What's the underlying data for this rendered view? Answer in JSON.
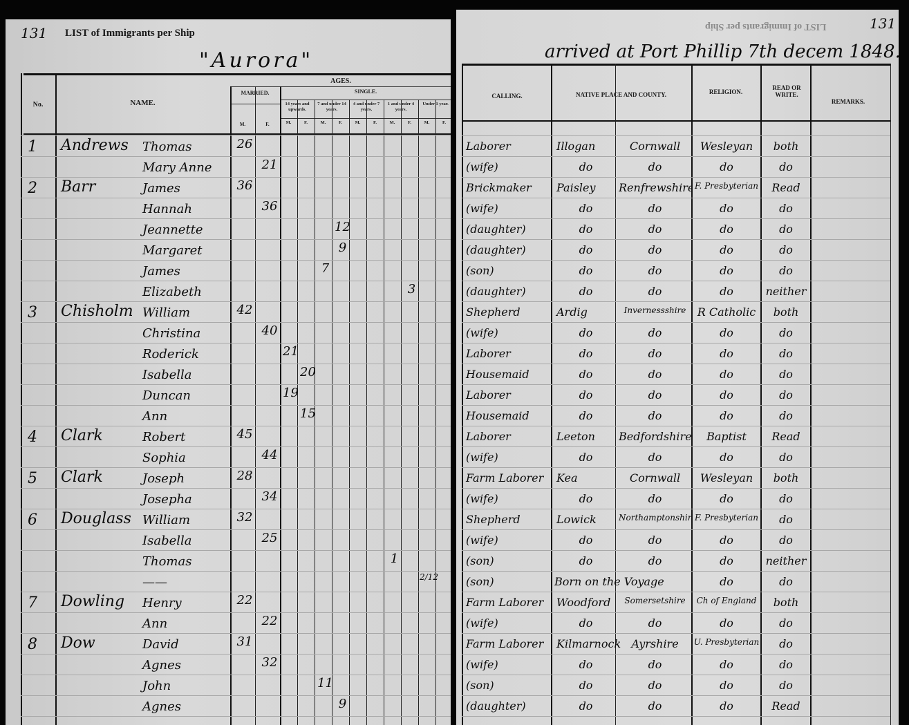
{
  "left_page": {
    "page_number": "131",
    "heading": "LIST of Immigrants per Ship",
    "ship_name": "\"Aurora\"",
    "headers": {
      "no": "No.",
      "name": "NAME.",
      "ages": "AGES.",
      "married": "MARRIED.",
      "single": "SINGLE.",
      "single_groups": [
        "14 years and upwards.",
        "7 and under 14 years.",
        "4 and under 7 years.",
        "1 and under 4 years.",
        "Under 1 year."
      ],
      "m": "M.",
      "f": "F."
    }
  },
  "right_page": {
    "page_number": "131",
    "mirrored_heading": "LIST of Immigrants per Ship",
    "arrival": "arrived at Port Phillip 7th decem 1848.",
    "headers": {
      "calling": "CALLING.",
      "native_place": "NATIVE PLACE AND COUNTY.",
      "religion": "RELIGION.",
      "read_write": "READ OR WRITE.",
      "remarks": "REMARKS."
    }
  },
  "rows": [
    {
      "no": "1",
      "surname": "Andrews",
      "given": "Thomas",
      "ages": {
        "married_m": "26"
      },
      "calling": "Laborer",
      "place": "Illogan",
      "county": "Cornwall",
      "religion": "Wesleyan",
      "read_write": "both"
    },
    {
      "no": "",
      "surname": "",
      "given": "Mary Anne",
      "ages": {
        "married_f": "21"
      },
      "calling": "(wife)",
      "place": "do",
      "county": "do",
      "religion": "do",
      "read_write": "do"
    },
    {
      "no": "2",
      "surname": "Barr",
      "given": "James",
      "ages": {
        "married_m": "36"
      },
      "calling": "Brickmaker",
      "place": "Paisley",
      "county": "Renfrewshire",
      "religion": "F. Presbyterian",
      "read_write": "Read"
    },
    {
      "no": "",
      "surname": "",
      "given": "Hannah",
      "ages": {
        "married_f": "36"
      },
      "calling": "(wife)",
      "place": "do",
      "county": "do",
      "religion": "do",
      "read_write": "do"
    },
    {
      "no": "",
      "surname": "",
      "given": "Jeannette",
      "ages": {
        "s7_f": "12"
      },
      "calling": "(daughter)",
      "place": "do",
      "county": "do",
      "religion": "do",
      "read_write": "do"
    },
    {
      "no": "",
      "surname": "",
      "given": "Margaret",
      "ages": {
        "s7_f": "9"
      },
      "calling": "(daughter)",
      "place": "do",
      "county": "do",
      "religion": "do",
      "read_write": "do"
    },
    {
      "no": "",
      "surname": "",
      "given": "James",
      "ages": {
        "s7_m": "7"
      },
      "calling": "(son)",
      "place": "do",
      "county": "do",
      "religion": "do",
      "read_write": "do"
    },
    {
      "no": "",
      "surname": "",
      "given": "Elizabeth",
      "ages": {
        "s1_f": "3"
      },
      "calling": "(daughter)",
      "place": "do",
      "county": "do",
      "religion": "do",
      "read_write": "neither"
    },
    {
      "no": "3",
      "surname": "Chisholm",
      "given": "William",
      "ages": {
        "married_m": "42"
      },
      "calling": "Shepherd",
      "place": "Ardig",
      "county": "Invernessshire",
      "religion": "R Catholic",
      "read_write": "both"
    },
    {
      "no": "",
      "surname": "",
      "given": "Christina",
      "ages": {
        "married_f": "40"
      },
      "calling": "(wife)",
      "place": "do",
      "county": "do",
      "religion": "do",
      "read_write": "do"
    },
    {
      "no": "",
      "surname": "",
      "given": "Roderick",
      "ages": {
        "s14_m": "21"
      },
      "calling": "Laborer",
      "place": "do",
      "county": "do",
      "religion": "do",
      "read_write": "do"
    },
    {
      "no": "",
      "surname": "",
      "given": "Isabella",
      "ages": {
        "s14_f": "20"
      },
      "calling": "Housemaid",
      "place": "do",
      "county": "do",
      "religion": "do",
      "read_write": "do"
    },
    {
      "no": "",
      "surname": "",
      "given": "Duncan",
      "ages": {
        "s14_m": "19"
      },
      "calling": "Laborer",
      "place": "do",
      "county": "do",
      "religion": "do",
      "read_write": "do"
    },
    {
      "no": "",
      "surname": "",
      "given": "Ann",
      "ages": {
        "s14_f": "15"
      },
      "calling": "Housemaid",
      "place": "do",
      "county": "do",
      "religion": "do",
      "read_write": "do"
    },
    {
      "no": "4",
      "surname": "Clark",
      "given": "Robert",
      "ages": {
        "married_m": "45"
      },
      "calling": "Laborer",
      "place": "Leeton",
      "county": "Bedfordshire",
      "religion": "Baptist",
      "read_write": "Read"
    },
    {
      "no": "",
      "surname": "",
      "given": "Sophia",
      "ages": {
        "married_f": "44"
      },
      "calling": "(wife)",
      "place": "do",
      "county": "do",
      "religion": "do",
      "read_write": "do"
    },
    {
      "no": "5",
      "surname": "Clark",
      "given": "Joseph",
      "ages": {
        "married_m": "28"
      },
      "calling": "Farm Laborer",
      "place": "Kea",
      "county": "Cornwall",
      "religion": "Wesleyan",
      "read_write": "both"
    },
    {
      "no": "",
      "surname": "",
      "given": "Josepha",
      "ages": {
        "married_f": "34"
      },
      "calling": "(wife)",
      "place": "do",
      "county": "do",
      "religion": "do",
      "read_write": "do"
    },
    {
      "no": "6",
      "surname": "Douglass",
      "given": "William",
      "ages": {
        "married_m": "32"
      },
      "calling": "Shepherd",
      "place": "Lowick",
      "county": "Northamptonshire",
      "religion": "F. Presbyterian",
      "read_write": "do"
    },
    {
      "no": "",
      "surname": "",
      "given": "Isabella",
      "ages": {
        "married_f": "25"
      },
      "calling": "(wife)",
      "place": "do",
      "county": "do",
      "religion": "do",
      "read_write": "do"
    },
    {
      "no": "",
      "surname": "",
      "given": "Thomas",
      "ages": {
        "s1_m": "1"
      },
      "calling": "(son)",
      "place": "do",
      "county": "do",
      "religion": "do",
      "read_write": "neither"
    },
    {
      "no": "",
      "surname": "",
      "given": "——",
      "ages": {
        "s0_m": "2/12"
      },
      "calling": "(son)",
      "place": "Born on the Voyage",
      "county": "",
      "religion": "do",
      "read_write": "do"
    },
    {
      "no": "7",
      "surname": "Dowling",
      "given": "Henry",
      "ages": {
        "married_m": "22"
      },
      "calling": "Farm Laborer",
      "place": "Woodford",
      "county": "Somersetshire",
      "religion": "Ch of England",
      "read_write": "both"
    },
    {
      "no": "",
      "surname": "",
      "given": "Ann",
      "ages": {
        "married_f": "22"
      },
      "calling": "(wife)",
      "place": "do",
      "county": "do",
      "religion": "do",
      "read_write": "do"
    },
    {
      "no": "8",
      "surname": "Dow",
      "given": "David",
      "ages": {
        "married_m": "31"
      },
      "calling": "Farm Laborer",
      "place": "Kilmarnock",
      "county": "Ayrshire",
      "religion": "U. Presbyterian",
      "read_write": "do"
    },
    {
      "no": "",
      "surname": "",
      "given": "Agnes",
      "ages": {
        "married_f": "32"
      },
      "calling": "(wife)",
      "place": "do",
      "county": "do",
      "religion": "do",
      "read_write": "do"
    },
    {
      "no": "",
      "surname": "",
      "given": "John",
      "ages": {
        "s7_m": "11"
      },
      "calling": "(son)",
      "place": "do",
      "county": "do",
      "religion": "do",
      "read_write": "do"
    },
    {
      "no": "",
      "surname": "",
      "given": "Agnes",
      "ages": {
        "s7_f": "9"
      },
      "calling": "(daughter)",
      "place": "do",
      "county": "do",
      "religion": "do",
      "read_write": "Read"
    }
  ]
}
